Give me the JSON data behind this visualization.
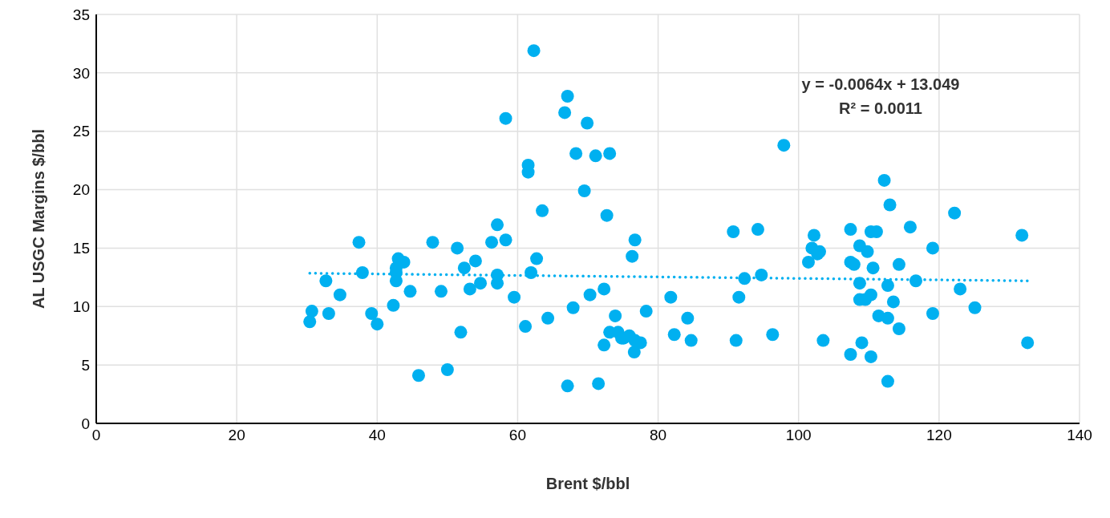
{
  "chart_data": {
    "type": "scatter",
    "xlabel": "Brent $/bbl",
    "ylabel": "AL USGC Margins $/bbl",
    "xlim": [
      0,
      140
    ],
    "xticks": [
      0,
      20,
      40,
      60,
      80,
      100,
      120,
      140
    ],
    "ylim": [
      0,
      35
    ],
    "yticks": [
      0,
      5,
      10,
      15,
      20,
      25,
      30,
      35
    ],
    "grid": true,
    "legend": false,
    "annotations": [
      "y = -0.0064x + 13.049",
      "R² = 0.0011"
    ],
    "series": [
      {
        "color": "#00b0f0",
        "marker": "circle",
        "x": [
          30.4,
          30.7,
          32.7,
          33.1,
          34.7,
          37.4,
          37.9,
          39.2,
          40.0,
          42.3,
          42.7,
          42.7,
          42.7,
          43.0,
          43.8,
          44.7,
          45.9,
          47.9,
          49.1,
          50.0,
          51.4,
          51.9,
          52.4,
          53.2,
          54.0,
          54.7,
          56.3,
          57.1,
          57.1,
          57.1,
          58.3,
          58.3,
          59.5,
          61.1,
          61.5,
          61.5,
          61.9,
          62.3,
          62.7,
          63.5,
          64.3,
          66.7,
          67.1,
          67.1,
          67.9,
          68.3,
          69.5,
          69.9,
          70.3,
          71.1,
          71.5,
          72.3,
          72.3,
          72.7,
          73.1,
          73.1,
          73.9,
          74.3,
          74.8,
          75.1,
          75.9,
          76.6,
          76.3,
          76.7,
          76.7,
          77.5,
          78.3,
          81.8,
          82.3,
          84.2,
          84.7,
          90.7,
          91.1,
          91.5,
          92.3,
          94.2,
          94.7,
          96.3,
          97.9,
          101.4,
          101.9,
          102.2,
          102.7,
          103.0,
          103.5,
          107.4,
          107.4,
          107.4,
          107.9,
          108.7,
          108.7,
          108.7,
          109.0,
          109.5,
          109.8,
          110.3,
          110.3,
          110.3,
          110.6,
          111.1,
          111.4,
          112.2,
          112.7,
          112.7,
          112.7,
          113.0,
          113.5,
          114.3,
          114.3,
          115.9,
          116.7,
          119.1,
          119.1,
          122.2,
          123.0,
          125.1,
          131.8,
          132.6
        ],
        "values": [
          8.7,
          9.6,
          12.2,
          9.4,
          11.0,
          15.5,
          12.9,
          9.4,
          8.5,
          10.1,
          13.3,
          12.9,
          12.2,
          14.1,
          13.8,
          11.3,
          4.1,
          15.5,
          11.3,
          4.6,
          15.0,
          7.8,
          13.3,
          11.5,
          13.9,
          12.0,
          15.5,
          17.0,
          12.7,
          12.0,
          15.7,
          26.1,
          10.8,
          8.3,
          22.1,
          21.5,
          12.9,
          31.9,
          14.1,
          18.2,
          9.0,
          26.6,
          28.0,
          3.2,
          9.9,
          23.1,
          19.9,
          25.7,
          11.0,
          22.9,
          3.4,
          11.5,
          6.7,
          17.8,
          23.1,
          7.8,
          9.2,
          7.8,
          7.3,
          7.3,
          7.5,
          6.1,
          14.3,
          15.7,
          7.1,
          6.9,
          9.6,
          10.8,
          7.6,
          9.0,
          7.1,
          16.4,
          7.1,
          10.8,
          12.4,
          16.6,
          12.7,
          7.6,
          23.8,
          13.8,
          15.0,
          16.1,
          14.5,
          14.7,
          7.1,
          5.9,
          16.6,
          13.8,
          13.6,
          15.2,
          12.0,
          10.6,
          6.9,
          10.6,
          14.7,
          16.4,
          11.0,
          5.7,
          13.3,
          16.4,
          9.2,
          20.8,
          11.8,
          9.0,
          3.6,
          18.7,
          10.4,
          8.1,
          13.6,
          16.8,
          12.2,
          15.0,
          9.4,
          18.0,
          11.5,
          9.9,
          16.1,
          6.9
        ]
      },
      {
        "type": "line",
        "color": "#00b0f0",
        "marker": "none",
        "line_style": "dotted",
        "x": [
          30.4,
          132.6
        ],
        "values": [
          12.85,
          12.2
        ]
      }
    ]
  }
}
